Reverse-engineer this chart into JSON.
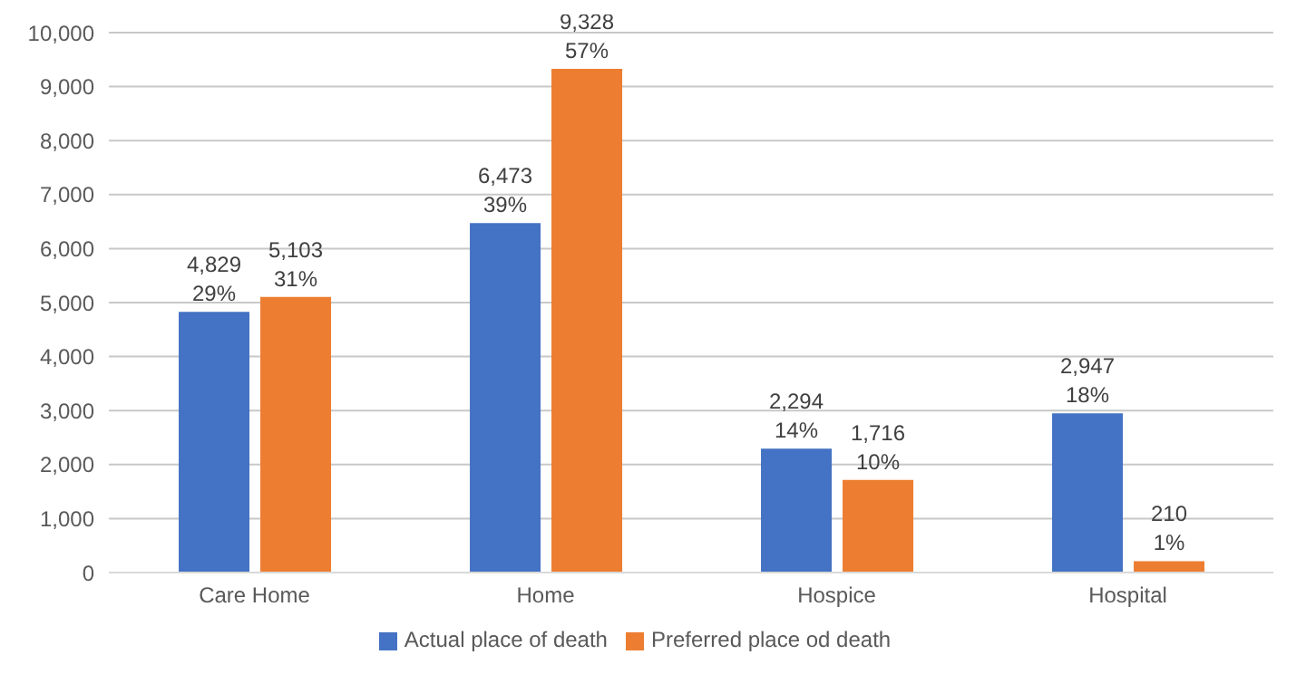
{
  "chart_data": {
    "type": "bar",
    "categories": [
      "Care Home",
      "Home",
      "Hospice",
      "Hospital"
    ],
    "series": [
      {
        "name": "Actual place of death",
        "color": "#4472c4",
        "values": [
          4829,
          6473,
          2294,
          2947
        ],
        "value_labels": [
          "4,829\n29%",
          "6,473\n39%",
          "2,294\n14%",
          "2,947\n18%"
        ]
      },
      {
        "name": "Preferred place od death",
        "color": "#ed7d31",
        "values": [
          5103,
          9328,
          1716,
          210
        ],
        "value_labels": [
          "5,103\n31%",
          "9,328\n57%",
          "1,716\n10%",
          "210\n1%"
        ]
      }
    ],
    "ylim": [
      0,
      10000
    ],
    "yticks": [
      {
        "value": 0,
        "label": "0"
      },
      {
        "value": 1000,
        "label": "1,000"
      },
      {
        "value": 2000,
        "label": "2,000"
      },
      {
        "value": 3000,
        "label": "3,000"
      },
      {
        "value": 4000,
        "label": "4,000"
      },
      {
        "value": 5000,
        "label": "5,000"
      },
      {
        "value": 6000,
        "label": "6,000"
      },
      {
        "value": 7000,
        "label": "7,000"
      },
      {
        "value": 8000,
        "label": "8,000"
      },
      {
        "value": 9000,
        "label": "9,000"
      },
      {
        "value": 10000,
        "label": "10,000"
      }
    ],
    "grid": "y",
    "legend": "bottom"
  }
}
